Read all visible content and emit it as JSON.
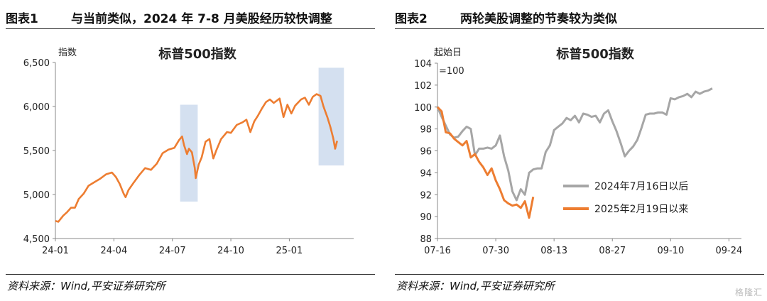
{
  "left": {
    "figure_number": "图表1",
    "figure_title": "与当前类似，2024 年 7-8 月美股经历较快调整",
    "source": "资料来源：Wind,平安证券研究所"
  },
  "right": {
    "figure_number": "图表2",
    "figure_title": "两轮美股调整的节奏较为类似",
    "source": "资料来源：Wind,平安证券研究所"
  },
  "watermark": "格隆汇",
  "chart_data": [
    {
      "type": "line",
      "title": "标普500指数",
      "ylabel": "指数",
      "xlabel": "",
      "ylim": [
        4500,
        6500
      ],
      "yticks": [
        "4,500",
        "5,000",
        "5,500",
        "6,000",
        "6,500"
      ],
      "xticks": [
        "24-01",
        "24-04",
        "24-07",
        "24-10",
        "25-01"
      ],
      "xlim_months": [
        0,
        15.3
      ],
      "grid": false,
      "series": [
        {
          "name": "标普500指数",
          "color": "#ED7D31",
          "points": [
            [
              0,
              4700
            ],
            [
              0.15,
              4690
            ],
            [
              0.4,
              4760
            ],
            [
              0.6,
              4800
            ],
            [
              0.8,
              4850
            ],
            [
              1.0,
              4850
            ],
            [
              1.2,
              4950
            ],
            [
              1.45,
              5010
            ],
            [
              1.7,
              5100
            ],
            [
              2.0,
              5140
            ],
            [
              2.3,
              5180
            ],
            [
              2.6,
              5230
            ],
            [
              2.9,
              5250
            ],
            [
              3.1,
              5200
            ],
            [
              3.3,
              5120
            ],
            [
              3.5,
              5010
            ],
            [
              3.6,
              4970
            ],
            [
              3.75,
              5050
            ],
            [
              4.0,
              5130
            ],
            [
              4.3,
              5220
            ],
            [
              4.6,
              5300
            ],
            [
              4.9,
              5280
            ],
            [
              5.2,
              5350
            ],
            [
              5.5,
              5470
            ],
            [
              5.8,
              5510
            ],
            [
              6.1,
              5530
            ],
            [
              6.35,
              5620
            ],
            [
              6.5,
              5660
            ],
            [
              6.6,
              5560
            ],
            [
              6.75,
              5460
            ],
            [
              6.85,
              5520
            ],
            [
              7.0,
              5480
            ],
            [
              7.15,
              5300
            ],
            [
              7.2,
              5186
            ],
            [
              7.35,
              5340
            ],
            [
              7.5,
              5420
            ],
            [
              7.7,
              5600
            ],
            [
              7.9,
              5630
            ],
            [
              8.1,
              5410
            ],
            [
              8.25,
              5500
            ],
            [
              8.5,
              5630
            ],
            [
              8.8,
              5710
            ],
            [
              9.0,
              5700
            ],
            [
              9.3,
              5790
            ],
            [
              9.6,
              5820
            ],
            [
              9.8,
              5850
            ],
            [
              10.0,
              5710
            ],
            [
              10.2,
              5830
            ],
            [
              10.4,
              5900
            ],
            [
              10.6,
              5980
            ],
            [
              10.8,
              6050
            ],
            [
              11.0,
              6080
            ],
            [
              11.2,
              6040
            ],
            [
              11.5,
              6090
            ],
            [
              11.7,
              5880
            ],
            [
              11.9,
              6020
            ],
            [
              12.1,
              5920
            ],
            [
              12.3,
              6010
            ],
            [
              12.6,
              6080
            ],
            [
              12.8,
              6100
            ],
            [
              13.0,
              6020
            ],
            [
              13.2,
              6110
            ],
            [
              13.4,
              6140
            ],
            [
              13.6,
              6120
            ],
            [
              13.75,
              6000
            ],
            [
              13.95,
              5880
            ],
            [
              14.1,
              5770
            ],
            [
              14.25,
              5640
            ],
            [
              14.35,
              5520
            ],
            [
              14.45,
              5610
            ]
          ]
        }
      ],
      "highlights": [
        {
          "x0": 6.4,
          "x1": 7.3,
          "y0": 4920,
          "y1": 6020
        },
        {
          "x0": 13.5,
          "x1": 14.8,
          "y0": 5330,
          "y1": 6440
        }
      ]
    },
    {
      "type": "line",
      "title": "标普500指数",
      "ylabel": "起始日\n=100",
      "xlabel": "",
      "ylim": [
        88,
        104
      ],
      "yticks": [
        "88",
        "90",
        "92",
        "94",
        "96",
        "98",
        "100",
        "102",
        "104"
      ],
      "xticks": [
        "07-16",
        "07-30",
        "08-13",
        "08-27",
        "09-10",
        "09-24"
      ],
      "xlim_days": [
        0,
        73
      ],
      "grid": false,
      "legend": "bottom-right",
      "series": [
        {
          "name": "2024年7月16日以后",
          "color": "#A6A6A6",
          "points": [
            [
              0,
              100
            ],
            [
              1,
              99.1
            ],
            [
              2,
              98.3
            ],
            [
              3,
              97.5
            ],
            [
              4,
              97.2
            ],
            [
              5,
              97.3
            ],
            [
              6,
              97.8
            ],
            [
              7,
              98.2
            ],
            [
              8,
              98
            ],
            [
              9,
              95.6
            ],
            [
              10,
              96.2
            ],
            [
              11,
              96.2
            ],
            [
              12,
              96.3
            ],
            [
              13,
              96.2
            ],
            [
              14,
              96.5
            ],
            [
              15,
              97.4
            ],
            [
              16,
              95.5
            ],
            [
              17,
              94.2
            ],
            [
              18,
              92.3
            ],
            [
              19,
              91.5
            ],
            [
              20,
              92.5
            ],
            [
              21,
              92
            ],
            [
              22,
              94
            ],
            [
              23,
              94.3
            ],
            [
              24,
              94.4
            ],
            [
              25,
              94.4
            ],
            [
              26,
              95.9
            ],
            [
              27,
              96.5
            ],
            [
              28,
              97.9
            ],
            [
              29,
              98.2
            ],
            [
              30,
              98.5
            ],
            [
              31,
              99
            ],
            [
              32,
              98.8
            ],
            [
              33,
              99.2
            ],
            [
              34,
              98.6
            ],
            [
              35,
              99.4
            ],
            [
              36,
              99.3
            ],
            [
              37,
              99.1
            ],
            [
              38,
              99.2
            ],
            [
              39,
              98.6
            ],
            [
              40,
              99.4
            ],
            [
              41,
              99.7
            ],
            [
              42,
              98.7
            ],
            [
              43,
              97.8
            ],
            [
              44,
              96.7
            ],
            [
              45,
              95.5
            ],
            [
              46,
              96
            ],
            [
              47,
              96.4
            ],
            [
              48,
              97
            ],
            [
              49,
              98.1
            ],
            [
              50,
              99.3
            ],
            [
              51,
              99.4
            ],
            [
              52,
              99.4
            ],
            [
              53,
              99.5
            ],
            [
              54,
              99.5
            ],
            [
              55,
              99.3
            ],
            [
              56,
              100.8
            ],
            [
              57,
              100.7
            ],
            [
              58,
              100.9
            ],
            [
              59,
              101
            ],
            [
              60,
              101.2
            ],
            [
              61,
              100.9
            ],
            [
              62,
              101.4
            ],
            [
              63,
              101.2
            ],
            [
              64,
              101.4
            ],
            [
              65,
              101.5
            ],
            [
              66,
              101.7
            ]
          ]
        },
        {
          "name": "2025年2月19日以来",
          "color": "#ED7D31",
          "points": [
            [
              0,
              100
            ],
            [
              1,
              99.6
            ],
            [
              2,
              97.7
            ],
            [
              3,
              97.6
            ],
            [
              4,
              97.1
            ],
            [
              5,
              96.8
            ],
            [
              6,
              96.5
            ],
            [
              7,
              96.9
            ],
            [
              8,
              95.4
            ],
            [
              9,
              95.7
            ],
            [
              10,
              95
            ],
            [
              11,
              94.5
            ],
            [
              12,
              93.8
            ],
            [
              13,
              94.4
            ],
            [
              14,
              93.3
            ],
            [
              15,
              92.5
            ],
            [
              16,
              91.5
            ],
            [
              17,
              91.2
            ],
            [
              18,
              91
            ],
            [
              19,
              91.1
            ],
            [
              20,
              90.8
            ],
            [
              21,
              91.4
            ],
            [
              22,
              89.9
            ],
            [
              23,
              91.8
            ]
          ]
        }
      ]
    }
  ]
}
